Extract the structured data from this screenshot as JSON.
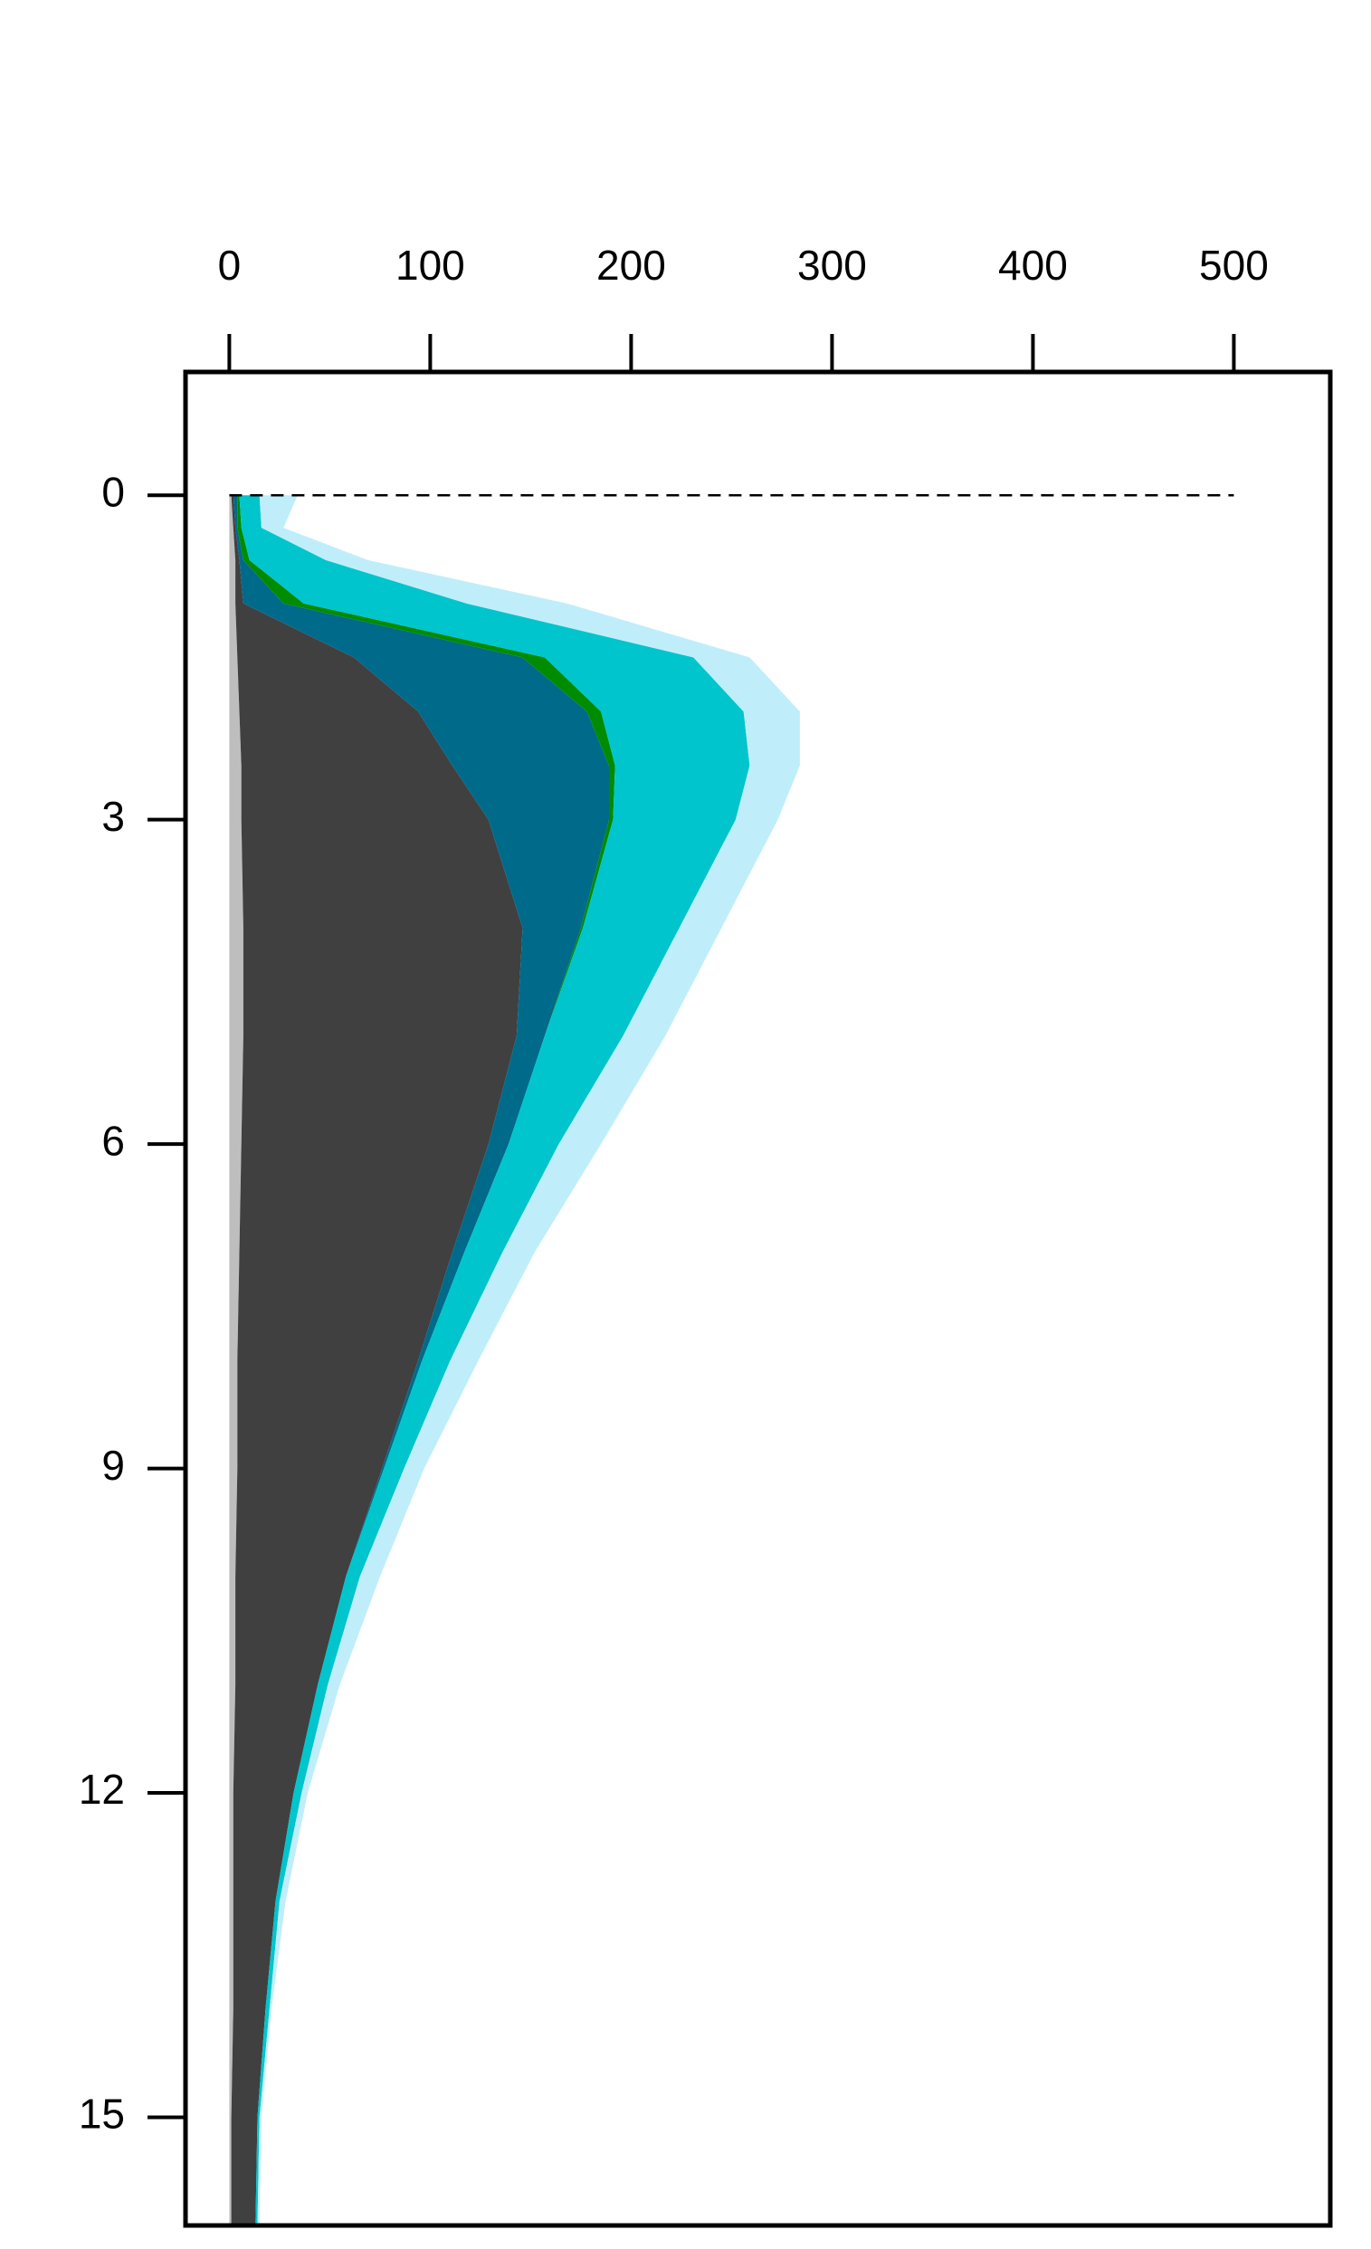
{
  "chart_data": {
    "type": "area",
    "stacked": true,
    "orientation": "horizontal",
    "y_inverted": true,
    "x_axis_position": "top",
    "y": [
      0,
      0.3,
      0.6,
      1,
      1.5,
      2,
      2.5,
      3,
      4,
      5,
      6,
      7,
      8,
      9,
      10,
      11,
      12,
      13,
      14,
      15,
      16
    ],
    "series": [
      {
        "color": "#bebebe",
        "values": [
          1,
          2,
          3,
          3,
          4,
          5,
          6,
          6,
          7,
          7,
          6,
          5,
          4,
          4,
          3,
          3,
          2,
          2,
          2,
          1,
          1
        ]
      },
      {
        "color": "#404040",
        "values": [
          1,
          1,
          2,
          4,
          58,
          89,
          105,
          123,
          139,
          136,
          123,
          106,
          90,
          72,
          55,
          41,
          30,
          21,
          16,
          13,
          12
        ]
      },
      {
        "color": "#006a8a",
        "values": [
          2,
          1,
          2,
          20,
          84,
          84,
          78,
          60,
          29,
          14,
          10,
          6,
          2,
          1,
          0,
          0,
          0,
          0,
          0,
          0,
          0
        ]
      },
      {
        "color": "#008b00",
        "values": [
          1,
          2,
          3,
          10,
          11,
          7,
          3,
          2,
          1,
          0,
          0,
          0,
          0,
          0,
          0,
          0,
          0,
          0,
          0,
          0,
          0
        ]
      },
      {
        "color": "#00c5cd",
        "values": [
          10,
          10,
          38,
          81,
          74,
          71,
          67,
          61,
          48,
          39,
          25,
          19,
          14,
          10,
          7,
          5,
          4,
          2,
          2,
          1,
          1
        ]
      },
      {
        "color": "#bfeefa",
        "values": [
          19,
          11,
          21,
          50,
          28,
          28,
          25,
          21,
          21,
          21,
          21,
          16,
          14,
          10,
          10,
          6,
          3,
          3,
          1,
          1,
          1
        ]
      }
    ],
    "xlim": [
      -21.8,
      548
    ],
    "xticks": [
      0,
      100,
      200,
      300,
      400,
      500
    ],
    "ylim": [
      -1.14,
      16
    ],
    "yticks": [
      0,
      3,
      6,
      9,
      12,
      15
    ],
    "reference_line": {
      "y": 0,
      "x": [
        0,
        500
      ],
      "dashed": true
    }
  }
}
